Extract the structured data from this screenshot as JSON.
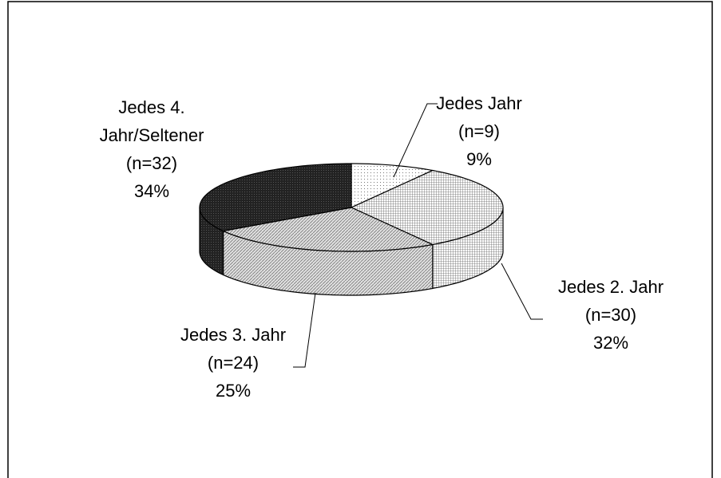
{
  "chart_data": {
    "type": "pie3d",
    "categories": [
      "Jedes Jahr",
      "Jedes 2. Jahr",
      "Jedes 3. Jahr",
      "Jedes 4. Jahr/Seltener"
    ],
    "count_labels": [
      "(n=9)",
      "(n=30)",
      "(n=24)",
      "(n=32)"
    ],
    "values": [
      9,
      32,
      25,
      34
    ],
    "value_labels": [
      "9%",
      "32%",
      "25%",
      "34%"
    ],
    "colors": [
      "#f4f4f4",
      "#d4d4d4",
      "#bdbdbd",
      "#333333"
    ]
  }
}
